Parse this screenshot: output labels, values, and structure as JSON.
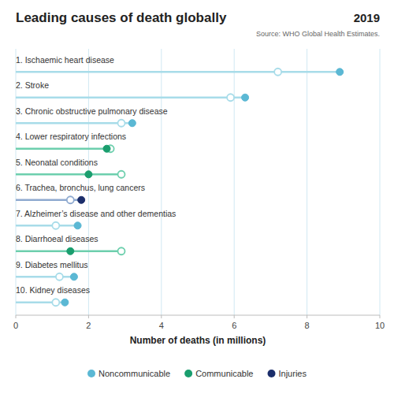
{
  "chart_data": {
    "type": "dumbbell",
    "title": "Leading causes of death globally",
    "subtitle": "2019",
    "annotations": [
      "Source: WHO Global Health Estimates."
    ],
    "xlabel": "Number of deaths (in millions)",
    "xlim": [
      0,
      10
    ],
    "xticks": [
      0,
      2,
      4,
      6,
      8,
      10
    ],
    "grid": true,
    "legend": "bottom",
    "categories": [
      "1. Ischaemic heart disease",
      "2. Stroke",
      "3. Chronic obstructive pulmonary disease",
      "4. Lower respiratory infections",
      "5. Neonatal conditions",
      "6. Trachea, bronchus, lung cancers",
      "7. Alzheimer’s disease and other dementias",
      "8. Diarrhoeal diseases",
      "9. Diabetes mellitus",
      "10. Kidney diseases"
    ],
    "series": [
      {
        "marker": "open",
        "values": [
          7.2,
          5.9,
          2.9,
          2.6,
          2.9,
          1.5,
          1.1,
          2.9,
          1.2,
          1.1
        ],
        "colors": [
          "#a8dce9",
          "#a8dce9",
          "#a8dce9",
          "#6dcfad",
          "#6dcfad",
          "#8faad0",
          "#a8dce9",
          "#6dcfad",
          "#a8dce9",
          "#a8dce9"
        ]
      },
      {
        "marker": "filled",
        "values": [
          8.9,
          6.3,
          3.2,
          2.5,
          2.0,
          1.8,
          1.7,
          1.5,
          1.6,
          1.35
        ],
        "colors": [
          "#5bb8d4",
          "#5bb8d4",
          "#5bb8d4",
          "#1a9e6e",
          "#1a9e6e",
          "#1b2e6b",
          "#5bb8d4",
          "#1a9e6e",
          "#5bb8d4",
          "#5bb8d4"
        ]
      }
    ],
    "legend_entries": [
      {
        "name": "Noncommunicable",
        "color": "#5bb8d4"
      },
      {
        "name": "Communicable",
        "color": "#1a9e6e"
      },
      {
        "name": "Injuries",
        "color": "#1b2e6b"
      }
    ]
  }
}
